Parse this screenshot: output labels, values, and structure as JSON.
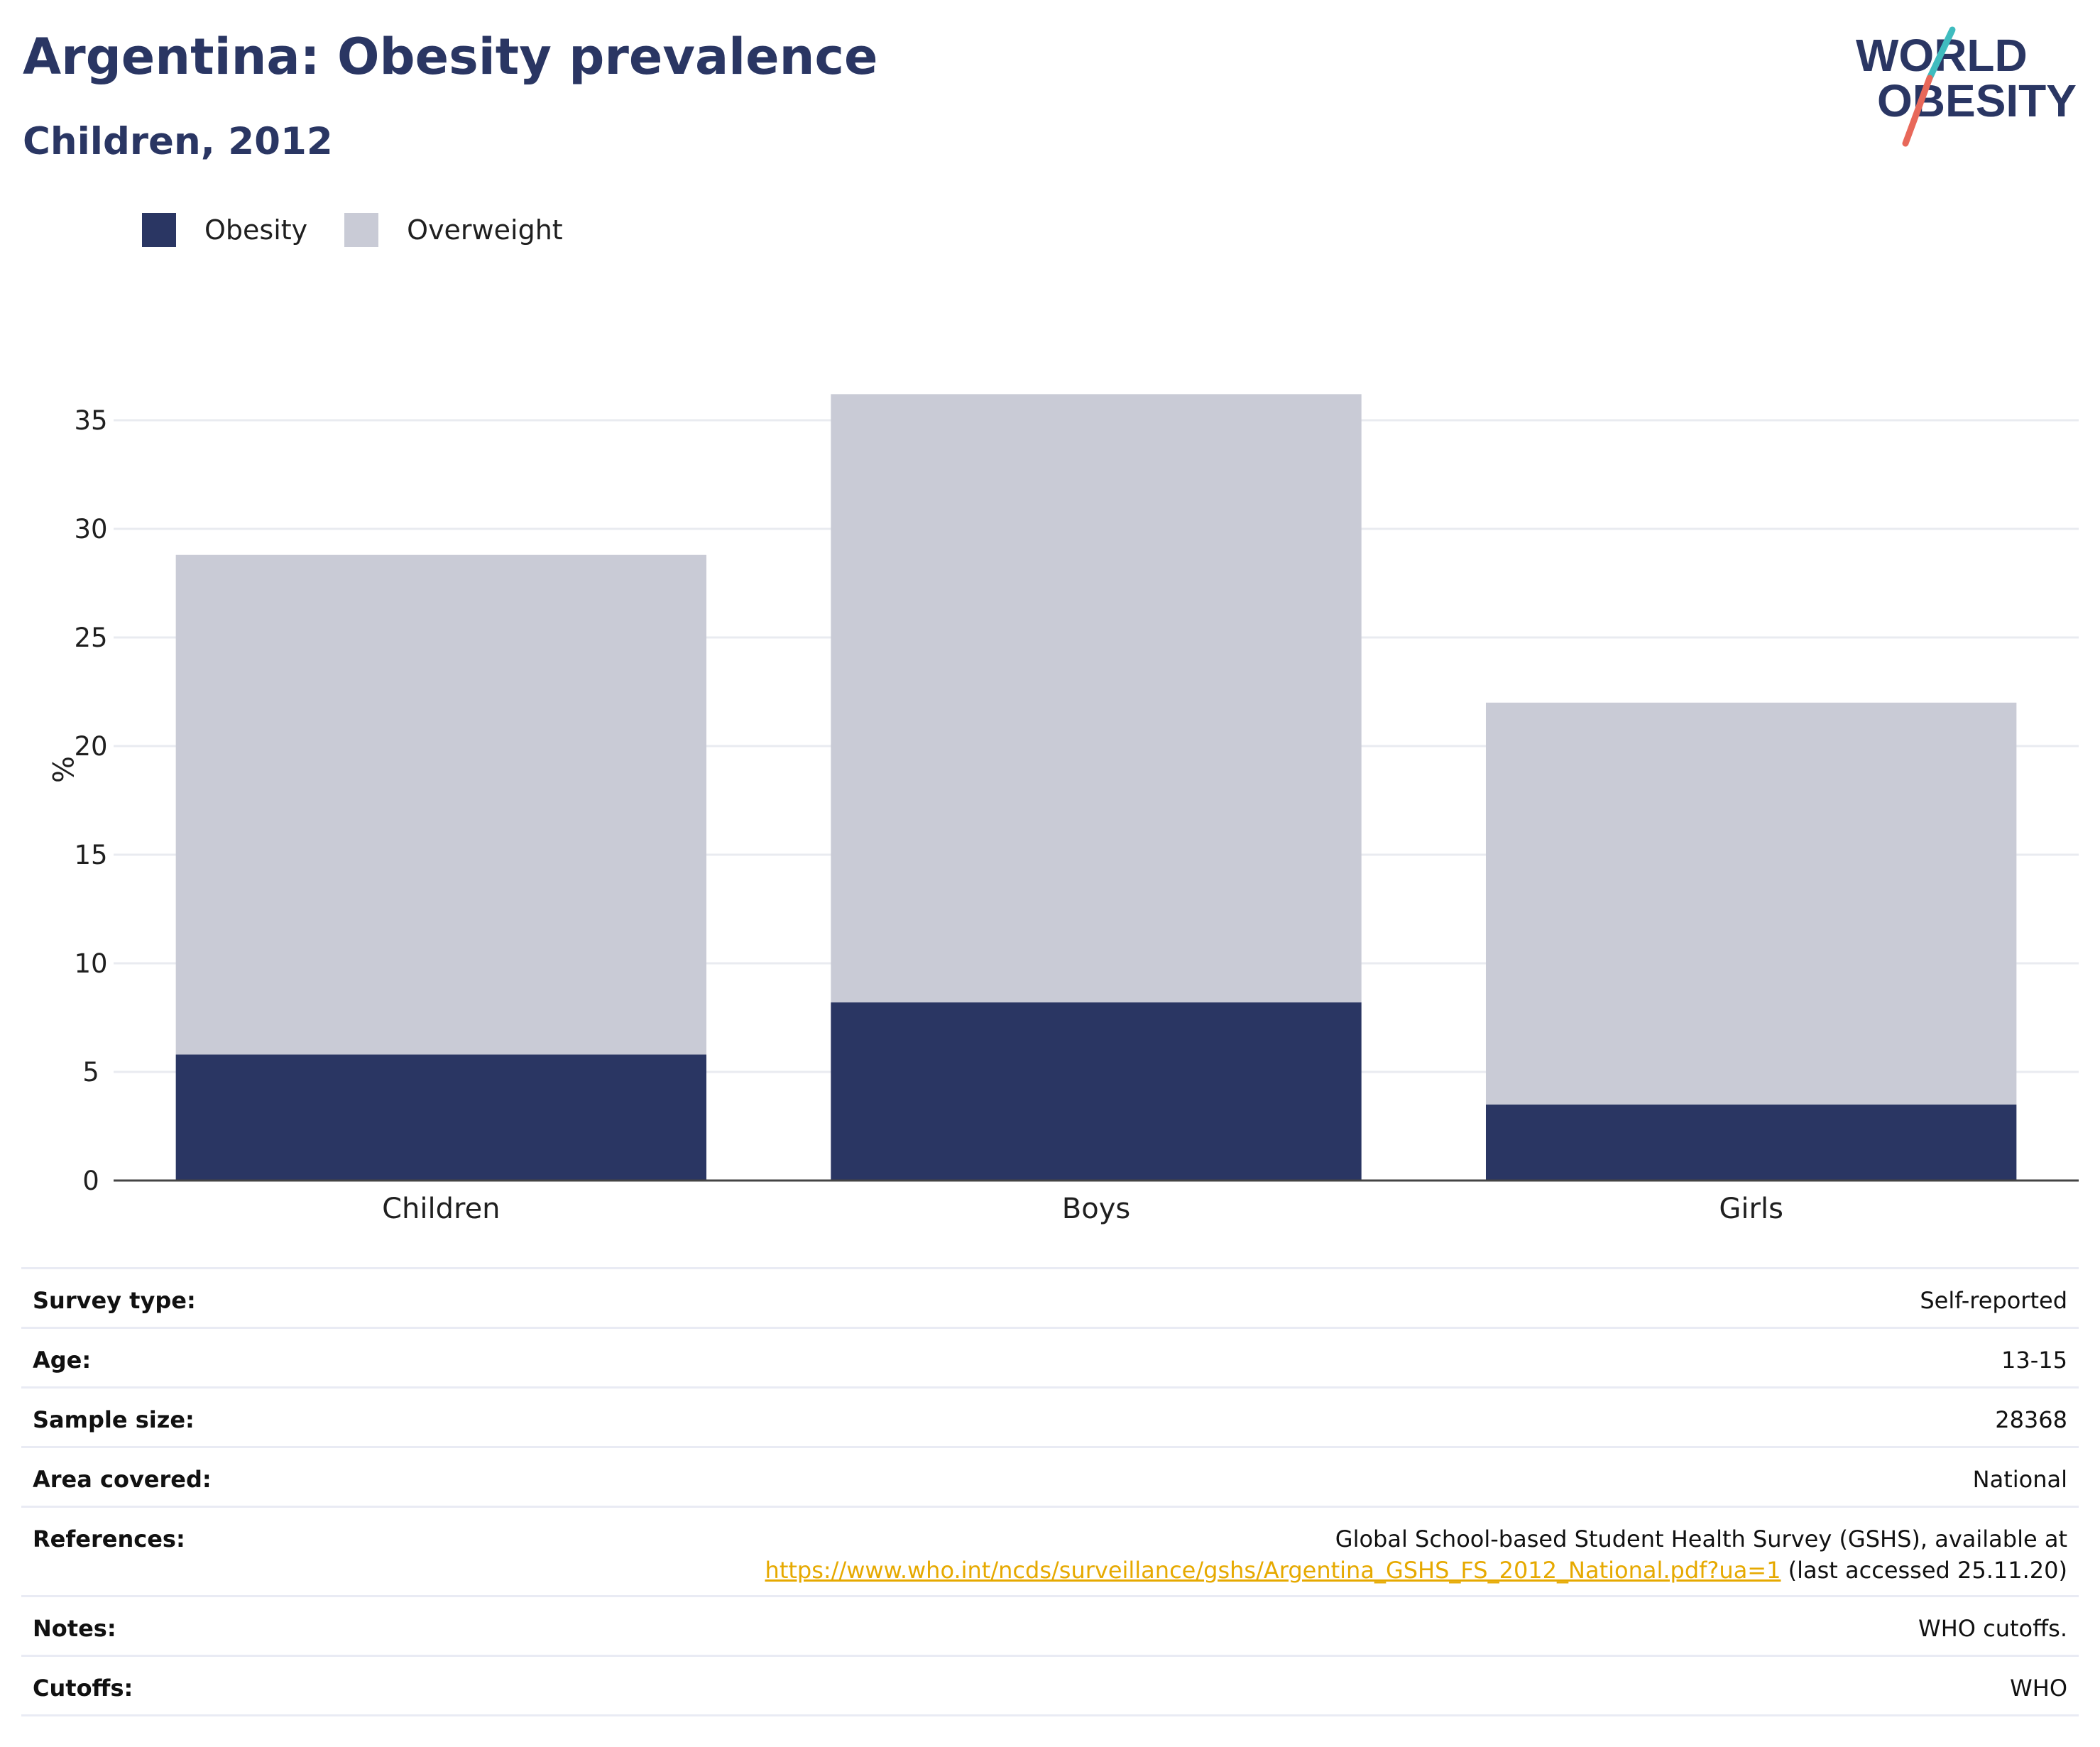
{
  "title": "Argentina: Obesity prevalence",
  "subtitle": "Children, 2012",
  "logo": {
    "line1": "WORLD",
    "line2": "OBESITY",
    "colors": {
      "text": "#2a3663",
      "slash_top": "#3fbcbf",
      "slash_bottom": "#e8685a"
    }
  },
  "legend": [
    {
      "label": "Obesity",
      "color": "#2a3663"
    },
    {
      "label": "Overweight",
      "color": "#c9cbd6"
    }
  ],
  "chart_data": {
    "type": "bar",
    "stacked": true,
    "categories": [
      "Children",
      "Boys",
      "Girls"
    ],
    "series": [
      {
        "name": "Obesity",
        "values": [
          5.8,
          8.2,
          3.5
        ],
        "color": "#2a3663"
      },
      {
        "name": "Overweight",
        "values": [
          23.0,
          28.0,
          18.5
        ],
        "color": "#c9cbd6"
      }
    ],
    "ylabel": "%",
    "xlabel": "",
    "ylim": [
      0,
      36
    ],
    "yticks": [
      0,
      5,
      10,
      15,
      20,
      25,
      30,
      35
    ],
    "grid": true,
    "legend_position": "top-left"
  },
  "info": {
    "survey_type": {
      "label": "Survey type:",
      "value": "Self-reported"
    },
    "age": {
      "label": "Age:",
      "value": "13-15"
    },
    "sample_size": {
      "label": "Sample size:",
      "value": "28368"
    },
    "area": {
      "label": "Area covered:",
      "value": "National"
    },
    "references": {
      "label": "References:",
      "line1": "Global School-based Student Health Survey (GSHS), available at",
      "url": "https://www.who.int/ncds/surveillance/gshs/Argentina_GSHS_FS_2012_National.pdf?ua=1",
      "suffix": " (last accessed 25.11.20)"
    },
    "notes": {
      "label": "Notes:",
      "value": "WHO cutoffs."
    },
    "cutoffs": {
      "label": "Cutoffs:",
      "value": "WHO"
    }
  }
}
